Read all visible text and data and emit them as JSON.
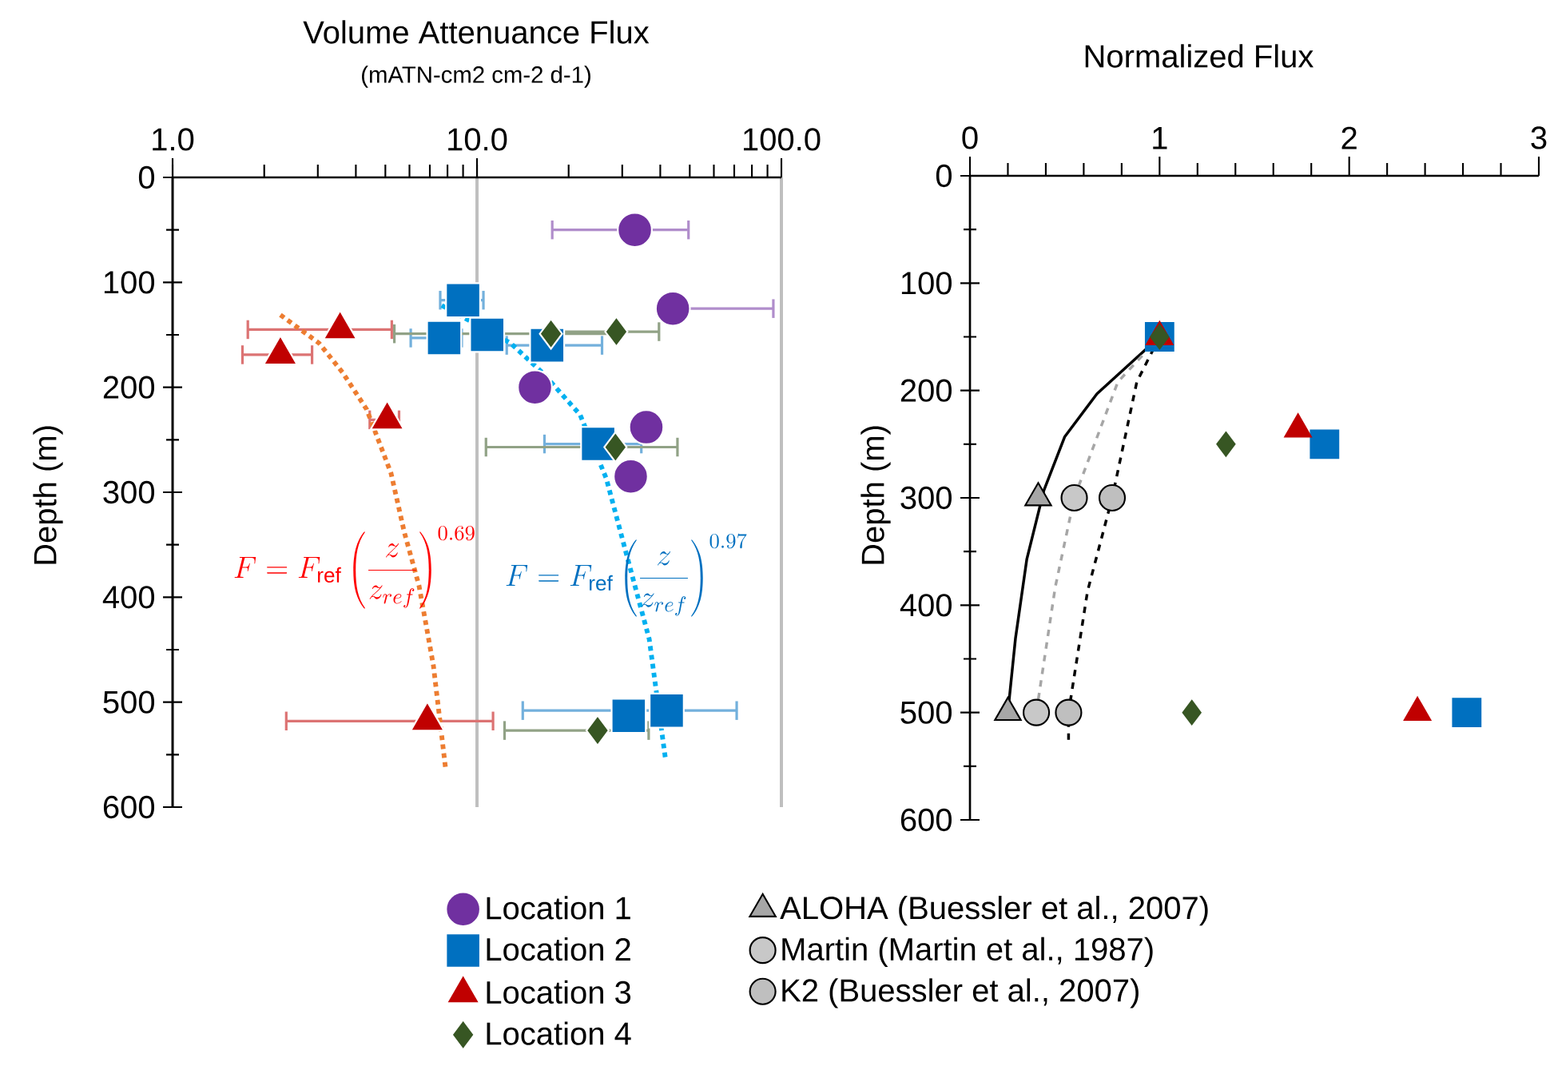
{
  "chart_data": [
    {
      "type": "scatter",
      "title": "Volume Attenuance Flux",
      "subtitle": "(mATN-cm2 cm-2 d-1)",
      "ylabel": "Depth (m)",
      "log": "x",
      "grid": "x",
      "legend": "bottom",
      "xlim": [
        1,
        100
      ],
      "xticks": [
        {
          "value": 1,
          "label": "1.0"
        },
        {
          "value": 10,
          "label": "10.0"
        },
        {
          "value": 100,
          "label": "100.0"
        }
      ],
      "ylim": [
        600,
        0
      ],
      "yticks": [
        0,
        100,
        200,
        300,
        400,
        500,
        600
      ],
      "annotations": [
        "F = F_{\\mathrm{ref}}\\left(\\frac{z}{z_{ref}}\\right)^{0.69}",
        "F = F_{\\mathrm{ref}}\\left(\\frac{z}{z_{ref}}\\right)^{0.97}"
      ],
      "series": [
        {
          "type": "line",
          "color": "#ed7d31",
          "line_style": "dotted",
          "x": [
            2.26,
            3.03,
            3.62,
            4.34,
            5.22,
            5.77,
            6.45,
            7.19,
            7.9
          ],
          "values": [
            131,
            158,
            186,
            221,
            282,
            338,
            389,
            465,
            565
          ]
        },
        {
          "type": "line",
          "color": "#00b0f0",
          "line_style": "dotted",
          "x": [
            7.66,
            12.9,
            16.4,
            21.8,
            26.6,
            31.3,
            36.8,
            41.6
          ],
          "values": [
            122,
            158,
            186,
            226,
            287,
            364,
            440,
            554
          ]
        },
        {
          "name": "Location 1",
          "color": "#7030a0",
          "marker": "circle",
          "x": [
            33,
            44,
            15.5,
            36,
            32
          ],
          "values": [
            50,
            125,
            200,
            238,
            285
          ],
          "xerrors": [
            [
              17.5,
              50
            ],
            [
              44,
              95
            ],
            null,
            null,
            null
          ]
        },
        {
          "name": "Location 2",
          "color": "#0070c0",
          "marker": "square",
          "x": [
            9.0,
            7.8,
            10.8,
            17,
            25,
            31.5,
            42
          ],
          "values": [
            117,
            153,
            150,
            160,
            254,
            513,
            508
          ],
          "xerrors": [
            [
              7.5,
              10.6
            ],
            [
              6,
              9
            ],
            null,
            [
              12.4,
              26
            ],
            [
              16.5,
              35
            ],
            null,
            [
              14,
              72
            ]
          ]
        },
        {
          "name": "Location 3",
          "color": "#c00000",
          "marker": "triangle",
          "x": [
            3.55,
            2.26,
            5.07,
            6.87
          ],
          "values": [
            145,
            169,
            231,
            518
          ],
          "xerrors": [
            [
              1.75,
              5.3
            ],
            [
              1.68,
              2.9
            ],
            [
              4.4,
              5.6
            ],
            [
              2.34,
              11.4
            ]
          ]
        },
        {
          "name": "Location 4",
          "color": "#375623",
          "marker": "diamond",
          "x": [
            17.5,
            28.7,
            28.5,
            24.9
          ],
          "values": [
            149,
            147,
            257,
            527
          ],
          "xerrors": [
            [
              5.3,
              28.7
            ],
            [
              17.5,
              40
            ],
            [
              10.6,
              46
            ],
            [
              12.2,
              37
            ]
          ]
        }
      ]
    },
    {
      "type": "scatter",
      "title": "Normalized Flux",
      "ylabel": "Depth (m)",
      "legend": "bottom",
      "xlim": [
        0,
        3
      ],
      "xticks": [
        0,
        1,
        2,
        3
      ],
      "ylim": [
        600,
        0
      ],
      "yticks": [
        0,
        100,
        200,
        300,
        400,
        500,
        600
      ],
      "series": [
        {
          "type": "line",
          "color": "#000000",
          "line_style": "solid",
          "x": [
            1,
            0.67,
            0.5,
            0.39,
            0.3,
            0.24,
            0.2
          ],
          "values": [
            150,
            203,
            243,
            293,
            357,
            431,
            500
          ]
        },
        {
          "type": "line",
          "color": "#a6a6a6",
          "line_style": "dashed",
          "x": [
            1,
            0.78,
            0.55,
            0.45,
            0.35
          ],
          "values": [
            150,
            192,
            300,
            383,
            500
          ]
        },
        {
          "type": "line",
          "color": "#000000",
          "line_style": "dashed",
          "x": [
            1,
            0.88,
            0.75,
            0.62,
            0.52,
            0.52
          ],
          "values": [
            150,
            192,
            300,
            387,
            500,
            530
          ]
        },
        {
          "color": "#0070c0",
          "marker": "square",
          "x": [
            1,
            1.87,
            2.62
          ],
          "values": [
            150,
            250,
            500
          ]
        },
        {
          "color": "#c00000",
          "marker": "triangle",
          "x": [
            1,
            1.73,
            2.36
          ],
          "values": [
            150,
            236,
            500
          ]
        },
        {
          "color": "#375623",
          "marker": "diamond",
          "x": [
            1,
            1.35,
            1.17
          ],
          "values": [
            150,
            250,
            500
          ]
        },
        {
          "name": "ALOHA (Buessler et al., 2007)",
          "color": "#a6a6a6",
          "marker": "triangle",
          "x": [
            0.36,
            0.2
          ],
          "values": [
            300,
            500
          ]
        },
        {
          "name": "Martin (Martin et al., 1987)",
          "color": "#c8c8c8",
          "marker": "circle",
          "x": [
            0.55,
            0.35
          ],
          "values": [
            300,
            500
          ]
        },
        {
          "name": "K2 (Buessler et al., 2007)",
          "color": "#bfbfbf",
          "marker": "circle",
          "x": [
            0.75,
            0.52
          ],
          "values": [
            300,
            500
          ]
        }
      ]
    }
  ]
}
